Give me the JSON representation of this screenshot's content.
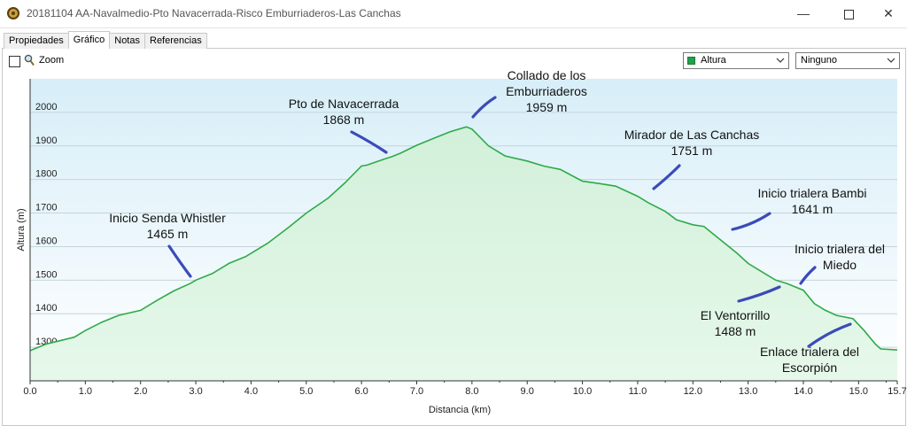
{
  "window": {
    "title": "20181104 AA-Navalmedio-Pto Navacerrada-Risco Emburriaderos-Las Canchas",
    "minimize_glyph": "—",
    "close_glyph": "✕"
  },
  "tabs": [
    {
      "label": "Propiedades",
      "active": false
    },
    {
      "label": "Gráfico",
      "active": true
    },
    {
      "label": "Notas",
      "active": false
    },
    {
      "label": "Referencias",
      "active": false
    }
  ],
  "toolbar": {
    "zoom_label": "Zoom",
    "zoom_checked": false,
    "series_select": {
      "value": "Altura",
      "swatch_color": "#22a04b"
    },
    "second_select": {
      "value": "Ninguno"
    }
  },
  "colors": {
    "line": "#2eaa48",
    "fill_bottom": "#e6f8ea",
    "plot_top": "#d7eef8",
    "plot_bottom": "#ffffff",
    "grid": "#c5d4da",
    "annotation_stroke": "#3b4bb8"
  },
  "chart_data": {
    "type": "area",
    "xlabel": "Distancia  (km)",
    "ylabel": "Altura (m)",
    "xlim": [
      0,
      15.7
    ],
    "ylim": [
      1200,
      2100
    ],
    "x_ticks": [
      "0.0",
      "1.0",
      "2.0",
      "3.0",
      "4.0",
      "5.0",
      "6.0",
      "7.0",
      "8.0",
      "9.0",
      "10.0",
      "11.0",
      "12.0",
      "13.0",
      "14.0",
      "15.0",
      "15.7"
    ],
    "y_ticks": [
      "1300",
      "1400",
      "1500",
      "1600",
      "1700",
      "1800",
      "1900",
      "2000"
    ],
    "grid": true,
    "series": [
      {
        "x": [
          0,
          0.3,
          0.8,
          1.0,
          1.3,
          1.6,
          2.0,
          2.3,
          2.6,
          2.9,
          3.0,
          3.3,
          3.6,
          3.9,
          4.3,
          4.7,
          5.0,
          5.4,
          5.7,
          6.0,
          6.1,
          6.4,
          6.55,
          6.7,
          7.0,
          7.3,
          7.6,
          7.9,
          8.0,
          8.3,
          8.6,
          9.0,
          9.3,
          9.6,
          10.0,
          10.3,
          10.6,
          11.0,
          11.2,
          11.5,
          11.7,
          12.0,
          12.2,
          12.5,
          12.8,
          13.0,
          13.3,
          13.5,
          13.7,
          14.0,
          14.2,
          14.4,
          14.6,
          14.9,
          15.1,
          15.3,
          15.4,
          15.7
        ],
        "y": [
          1290,
          1310,
          1330,
          1350,
          1375,
          1395,
          1410,
          1440,
          1468,
          1490,
          1500,
          1520,
          1550,
          1570,
          1610,
          1660,
          1700,
          1745,
          1790,
          1840,
          1843,
          1860,
          1868,
          1878,
          1902,
          1922,
          1942,
          1957,
          1950,
          1900,
          1870,
          1855,
          1840,
          1830,
          1795,
          1788,
          1780,
          1750,
          1730,
          1705,
          1680,
          1665,
          1660,
          1620,
          1580,
          1550,
          1520,
          1500,
          1490,
          1470,
          1430,
          1410,
          1395,
          1385,
          1350,
          1310,
          1295,
          1292
        ]
      }
    ],
    "annotations": [
      {
        "lines": [
          "Inicio Senda Whistler",
          "1465 m"
        ]
      },
      {
        "lines": [
          "Pto de Navacerrada",
          "1868 m"
        ]
      },
      {
        "lines": [
          "Collado de los",
          "Emburriaderos",
          "1959 m"
        ]
      },
      {
        "lines": [
          "Mirador de Las Canchas",
          "1751 m"
        ]
      },
      {
        "lines": [
          "Inicio trialera Bambi",
          "1641 m"
        ]
      },
      {
        "lines": [
          "Inicio trialera del",
          "Miedo"
        ]
      },
      {
        "lines": [
          "El Ventorrillo",
          "1488 m"
        ]
      },
      {
        "lines": [
          "Enlace trialera del",
          "Escorpión"
        ]
      }
    ]
  }
}
